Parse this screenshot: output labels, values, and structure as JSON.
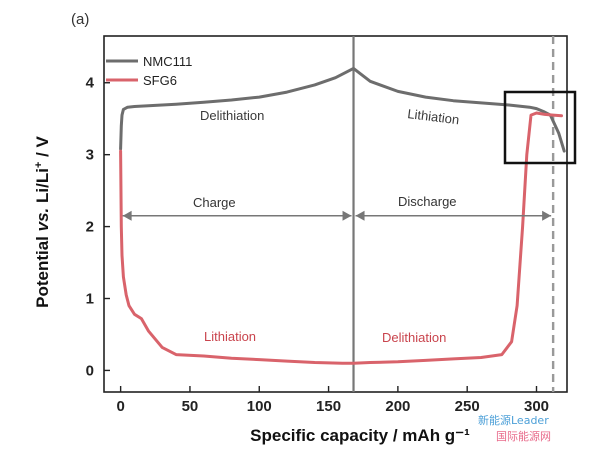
{
  "chart_data": {
    "type": "line",
    "panel_label": "(a)",
    "xlabel": "Specific capacity / mAh g⁻¹",
    "ylabel_parts": {
      "a": "Potential ",
      "b": "vs.",
      "c": " Li/Li",
      "sup": "+",
      "d": " / V"
    },
    "xlim": [
      -12,
      322
    ],
    "ylim": [
      -0.3,
      4.65
    ],
    "xticks": [
      0,
      50,
      100,
      150,
      200,
      250,
      300
    ],
    "yticks": [
      0,
      1,
      2,
      3,
      4
    ],
    "grid": false,
    "legend_position": "top-left",
    "series": [
      {
        "name": "NMC111",
        "color": "#6d6d6d",
        "x": [
          0,
          0.5,
          1,
          2,
          5,
          10,
          20,
          40,
          60,
          80,
          100,
          120,
          140,
          155,
          168,
          180,
          200,
          220,
          240,
          260,
          280,
          295,
          300,
          305,
          310,
          316,
          320
        ],
        "y": [
          3.08,
          3.4,
          3.55,
          3.63,
          3.66,
          3.67,
          3.68,
          3.7,
          3.73,
          3.76,
          3.8,
          3.87,
          3.97,
          4.07,
          4.2,
          4.02,
          3.88,
          3.8,
          3.75,
          3.72,
          3.69,
          3.66,
          3.64,
          3.6,
          3.55,
          3.3,
          3.05
        ]
      },
      {
        "name": "SFG6",
        "color": "#d9636b",
        "x": [
          0,
          0.5,
          1,
          2,
          4,
          6,
          10,
          15,
          20,
          30,
          40,
          60,
          80,
          100,
          120,
          140,
          160,
          168,
          180,
          200,
          220,
          240,
          260,
          275,
          282,
          286,
          290,
          293,
          296,
          300,
          306,
          312,
          318
        ],
        "y": [
          3.05,
          2.0,
          1.6,
          1.3,
          1.05,
          0.9,
          0.78,
          0.72,
          0.55,
          0.32,
          0.22,
          0.2,
          0.17,
          0.15,
          0.13,
          0.11,
          0.1,
          0.1,
          0.11,
          0.12,
          0.14,
          0.16,
          0.18,
          0.22,
          0.4,
          0.9,
          2.0,
          3.0,
          3.55,
          3.58,
          3.56,
          3.55,
          3.54
        ]
      }
    ],
    "reference_lines": {
      "solid_vertical_x": 168,
      "dashed_vertical_x": 312
    },
    "annotations": {
      "delithiation_top": "Delithiation",
      "lithiation_top": "Lithiation",
      "charge": "Charge",
      "discharge": "Discharge",
      "lithiation_bottom": "Lithiation",
      "delithiation_bottom": "Delithiation"
    },
    "arrow_y": 2.15
  },
  "watermark": {
    "line1": "新能源Leader",
    "line2": "国际能源网"
  }
}
